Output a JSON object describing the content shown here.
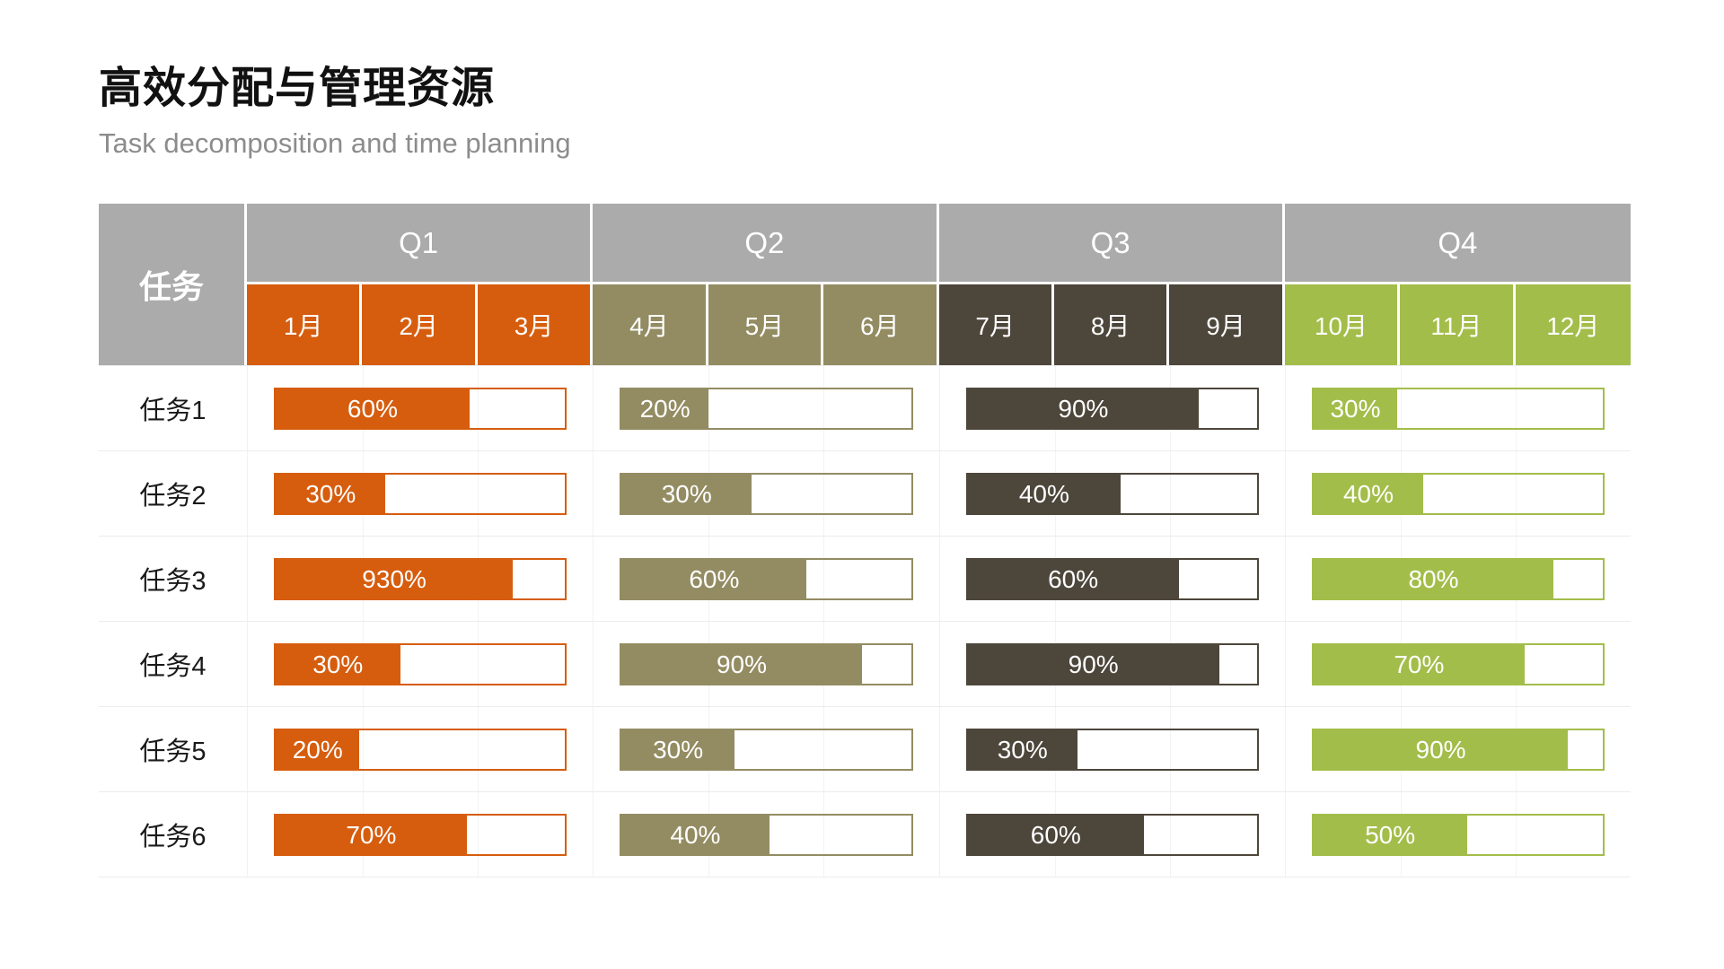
{
  "page": {
    "title": "高效分配与管理资源",
    "subtitle": "Task decomposition and time planning"
  },
  "colors": {
    "header_gray": "#ABABAB",
    "q1": "#D65D0E",
    "q2": "#938C62",
    "q3": "#4D463B",
    "q4": "#A3BD4A",
    "grid_line": "#F1F1F1",
    "row_line": "#ECECEC",
    "subtitle_gray": "#8C8C8C",
    "title_black": "#111111"
  },
  "chart_data": {
    "type": "table",
    "title": "高效分配与管理资源",
    "subtitle": "Task decomposition and time planning",
    "task_column_header": "任务",
    "legend_position": "none",
    "grid": true,
    "quarters": [
      {
        "label": "Q1",
        "color_key": "q1",
        "months": [
          "1月",
          "2月",
          "3月"
        ]
      },
      {
        "label": "Q2",
        "color_key": "q2",
        "months": [
          "4月",
          "5月",
          "6月"
        ]
      },
      {
        "label": "Q3",
        "color_key": "q3",
        "months": [
          "7月",
          "8月",
          "9月"
        ]
      },
      {
        "label": "Q4",
        "color_key": "q4",
        "months": [
          "10月",
          "11月",
          "12月"
        ]
      }
    ],
    "rows": [
      {
        "task": "任务1",
        "values": [
          "60%",
          "20%",
          "90%",
          "30%"
        ],
        "fill_pct": [
          67,
          30,
          80,
          29
        ]
      },
      {
        "task": "任务2",
        "values": [
          "30%",
          "30%",
          "40%",
          "40%"
        ],
        "fill_pct": [
          38,
          45,
          53,
          38
        ]
      },
      {
        "task": "任务3",
        "values": [
          "930%",
          "60%",
          "60%",
          "80%"
        ],
        "fill_pct": [
          82,
          64,
          73,
          83
        ]
      },
      {
        "task": "任务4",
        "values": [
          "30%",
          "90%",
          "90%",
          "70%"
        ],
        "fill_pct": [
          43,
          83,
          87,
          73
        ]
      },
      {
        "task": "任务5",
        "values": [
          "20%",
          "30%",
          "30%",
          "90%"
        ],
        "fill_pct": [
          29,
          39,
          38,
          88
        ]
      },
      {
        "task": "任务6",
        "values": [
          "70%",
          "40%",
          "60%",
          "50%"
        ],
        "fill_pct": [
          66,
          51,
          61,
          53
        ]
      }
    ]
  }
}
